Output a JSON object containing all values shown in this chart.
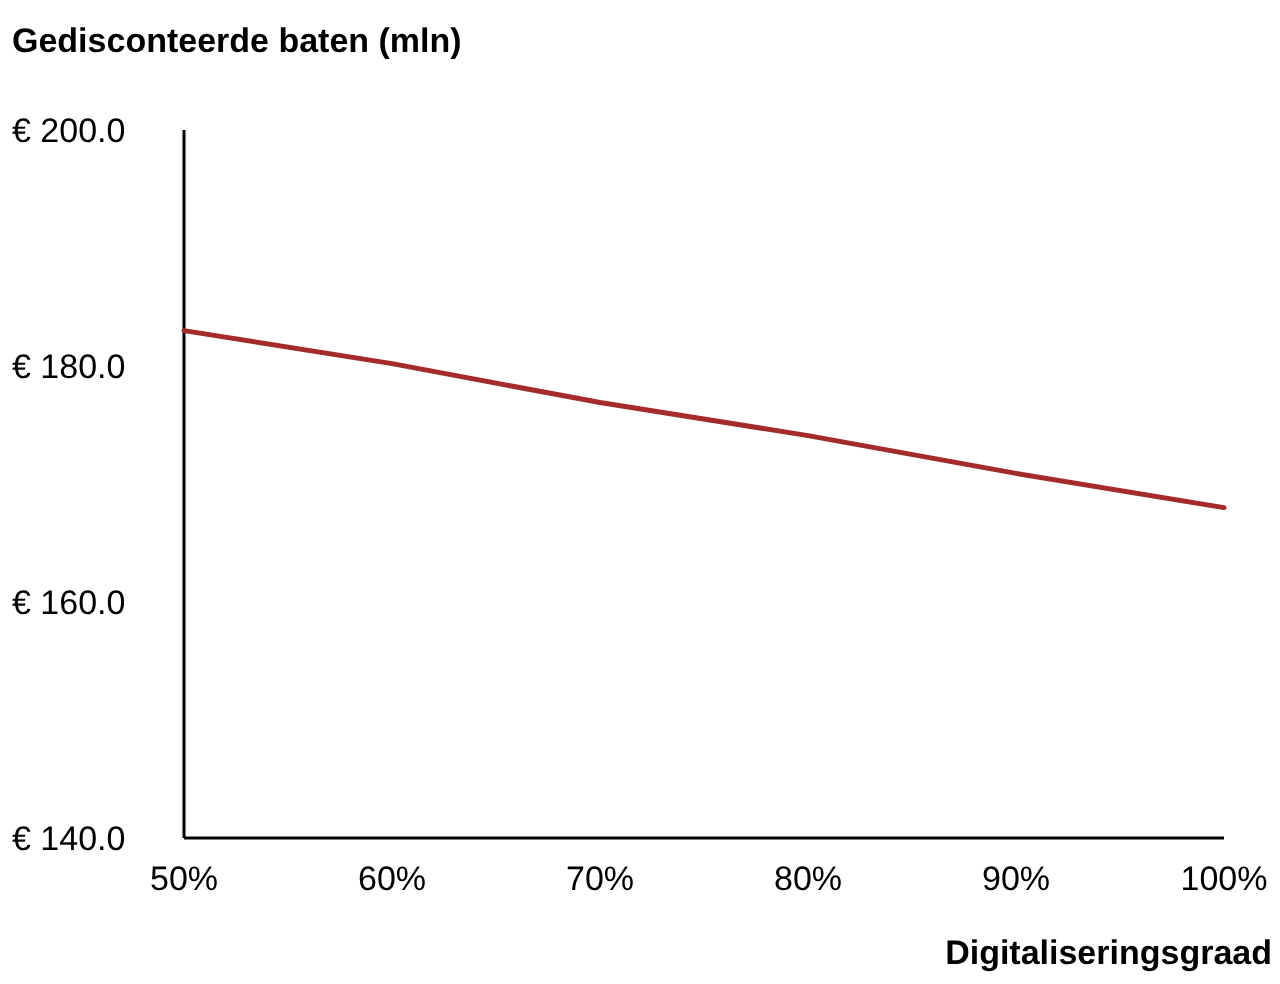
{
  "chart_data": {
    "type": "line",
    "ylabel": "Gedisconteerde baten (mln)",
    "xlabel": "Digitaliseringsgraad",
    "x": [
      50,
      60,
      70,
      80,
      90,
      100
    ],
    "series": [
      {
        "color": "#a52a2a",
        "values": [
          183.0,
          180.2,
          176.9,
          174.1,
          170.9,
          168.0
        ]
      }
    ],
    "xlim": [
      50,
      100
    ],
    "xticks": [
      {
        "value": 50,
        "label": "50%"
      },
      {
        "value": 60,
        "label": "60%"
      },
      {
        "value": 70,
        "label": "70%"
      },
      {
        "value": 80,
        "label": "80%"
      },
      {
        "value": 90,
        "label": "90%"
      },
      {
        "value": 100,
        "label": "100%"
      }
    ],
    "ylim": [
      140,
      200
    ],
    "yticks": [
      {
        "value": 140,
        "label": "€ 140.0"
      },
      {
        "value": 160,
        "label": "€ 160.0"
      },
      {
        "value": 180,
        "label": "€ 180.0"
      },
      {
        "value": 200,
        "label": "€ 200.0"
      }
    ],
    "grid": false,
    "marker": "none",
    "line_style": "solid"
  }
}
